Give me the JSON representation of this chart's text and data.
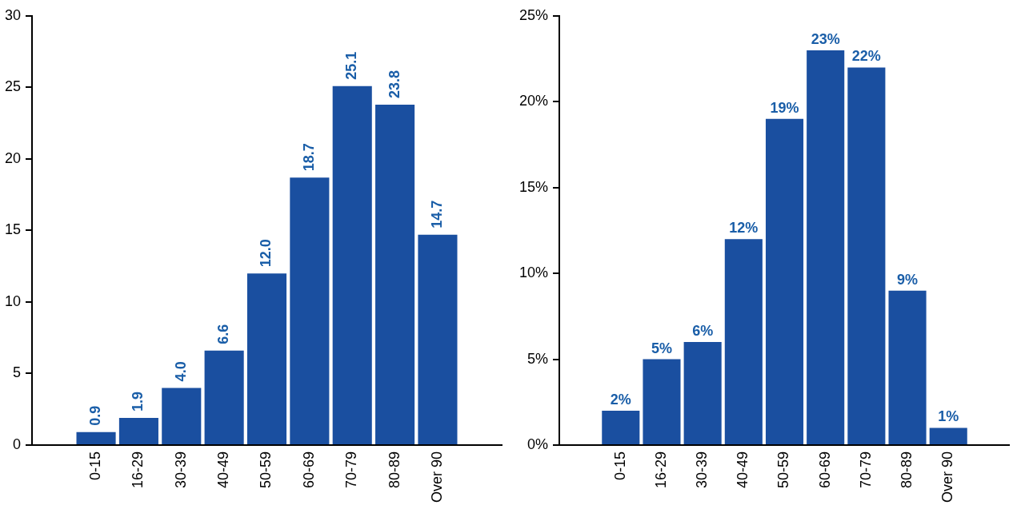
{
  "chart_data": [
    {
      "type": "bar",
      "categories": [
        "0-15",
        "16-29",
        "30-39",
        "40-49",
        "50-59",
        "60-69",
        "70-79",
        "80-89",
        "Over 90"
      ],
      "values": [
        0.9,
        1.9,
        4.0,
        6.6,
        12.0,
        18.7,
        25.1,
        23.8,
        14.7
      ],
      "value_labels": [
        "0.9",
        "1.9",
        "4.0",
        "6.6",
        "12.0",
        "18.7",
        "25.1",
        "23.8",
        "14.7"
      ],
      "color": "#1a4fa0",
      "ylim": [
        0,
        30
      ],
      "yticks": [
        0,
        5,
        10,
        15,
        20,
        25,
        30
      ],
      "grid": false,
      "legend": false
    },
    {
      "type": "bar",
      "categories": [
        "0-15",
        "16-29",
        "30-39",
        "40-49",
        "50-59",
        "60-69",
        "70-79",
        "80-89",
        "Over 90"
      ],
      "values": [
        2,
        5,
        6,
        12,
        19,
        23,
        22,
        9,
        1
      ],
      "value_labels": [
        "2%",
        "5%",
        "6%",
        "12%",
        "19%",
        "23%",
        "22%",
        "9%",
        "1%"
      ],
      "color": "#1a4fa0",
      "ylim": [
        0,
        25
      ],
      "yticks": [
        {
          "value": 0,
          "label": "0%"
        },
        {
          "value": 5,
          "label": "5%"
        },
        {
          "value": 10,
          "label": "10%"
        },
        {
          "value": 15,
          "label": "15%"
        },
        {
          "value": 20,
          "label": "20%"
        },
        {
          "value": 25,
          "label": "25%"
        }
      ],
      "grid": false,
      "legend": false
    }
  ]
}
